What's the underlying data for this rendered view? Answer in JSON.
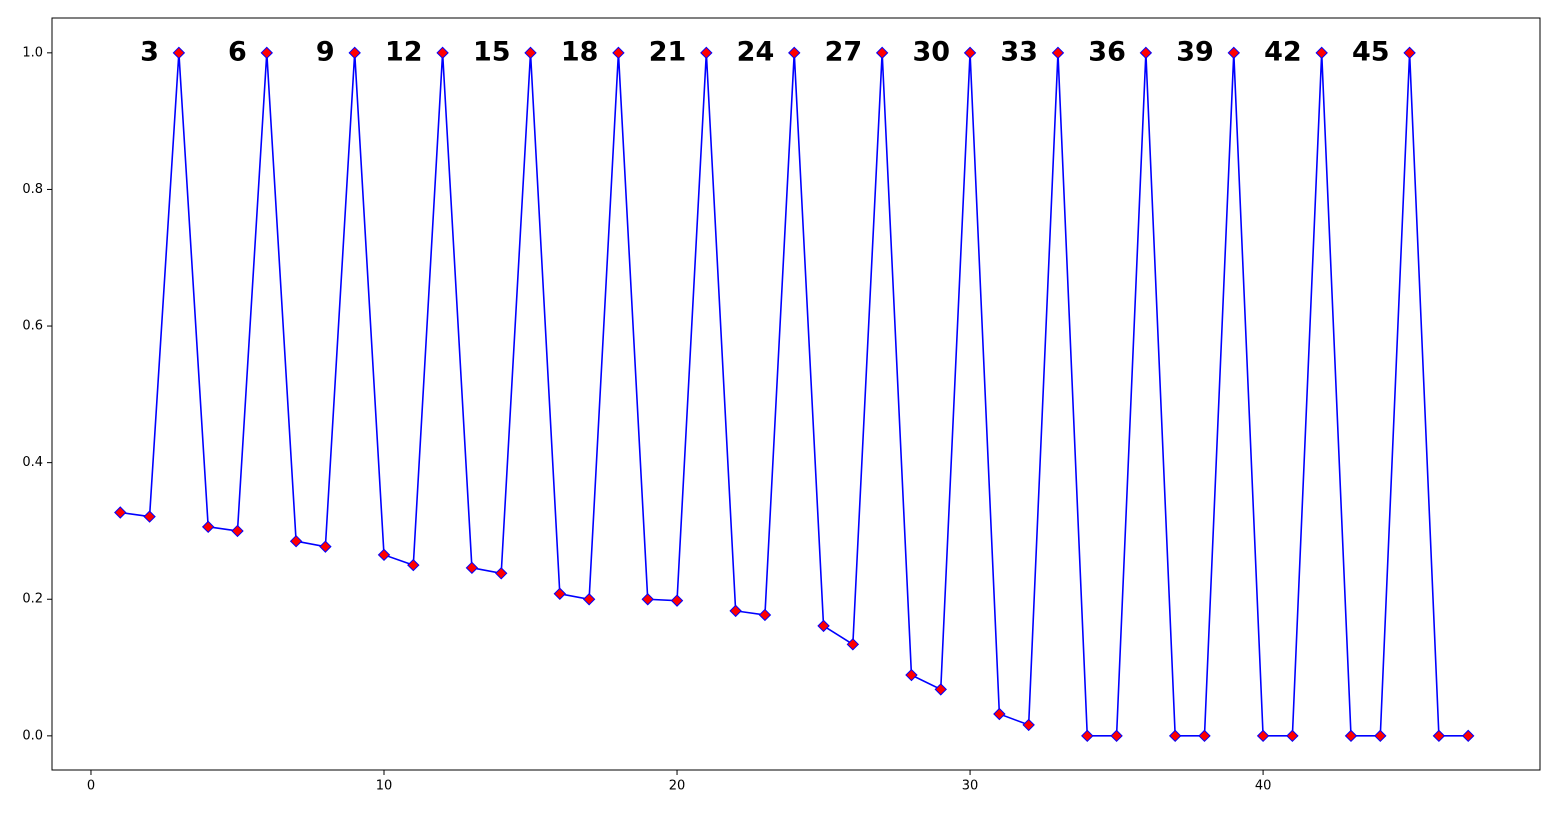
{
  "chart_data": {
    "type": "line",
    "x": [
      1,
      2,
      3,
      4,
      5,
      6,
      7,
      8,
      9,
      10,
      11,
      12,
      13,
      14,
      15,
      16,
      17,
      18,
      19,
      20,
      21,
      22,
      23,
      24,
      25,
      26,
      27,
      28,
      29,
      30,
      31,
      32,
      33,
      34,
      35,
      36,
      37,
      38,
      39,
      40,
      41,
      42,
      43,
      44,
      45,
      46,
      47
    ],
    "series": [
      {
        "color": "#0000ff",
        "marker_color": "#ff0000",
        "values": [
          0.327,
          0.321,
          1,
          0.306,
          0.3,
          1,
          0.285,
          0.277,
          1,
          0.265,
          0.25,
          1,
          0.246,
          0.238,
          1,
          0.208,
          0.2,
          1,
          0.2,
          0.198,
          1,
          0.183,
          0.177,
          1,
          0.161,
          0.134,
          1,
          0.089,
          0.068,
          1,
          0.032,
          0.016,
          1,
          0,
          0,
          1,
          0,
          0,
          1,
          0,
          0,
          1,
          0,
          0,
          1,
          0,
          0
        ]
      }
    ],
    "annotations": [
      {
        "text": "3",
        "x": 3,
        "y": 1
      },
      {
        "text": "6",
        "x": 6,
        "y": 1
      },
      {
        "text": "9",
        "x": 9,
        "y": 1
      },
      {
        "text": "12",
        "x": 12,
        "y": 1
      },
      {
        "text": "15",
        "x": 15,
        "y": 1
      },
      {
        "text": "18",
        "x": 18,
        "y": 1
      },
      {
        "text": "21",
        "x": 21,
        "y": 1
      },
      {
        "text": "24",
        "x": 24,
        "y": 1
      },
      {
        "text": "27",
        "x": 27,
        "y": 1
      },
      {
        "text": "30",
        "x": 30,
        "y": 1
      },
      {
        "text": "33",
        "x": 33,
        "y": 1
      },
      {
        "text": "36",
        "x": 36,
        "y": 1
      },
      {
        "text": "39",
        "x": 39,
        "y": 1
      },
      {
        "text": "42",
        "x": 42,
        "y": 1
      },
      {
        "text": "45",
        "x": 45,
        "y": 1
      }
    ],
    "xlim": [
      -1.33,
      49.45
    ],
    "xticks": [
      0,
      10,
      20,
      30,
      40
    ],
    "ylim": [
      -0.05,
      1.051
    ],
    "yticks": [
      {
        "value": 0,
        "label": "0.0"
      },
      0.2,
      0.4,
      0.6,
      0.8,
      {
        "value": 1,
        "label": "1.0"
      }
    ],
    "grid": false
  }
}
